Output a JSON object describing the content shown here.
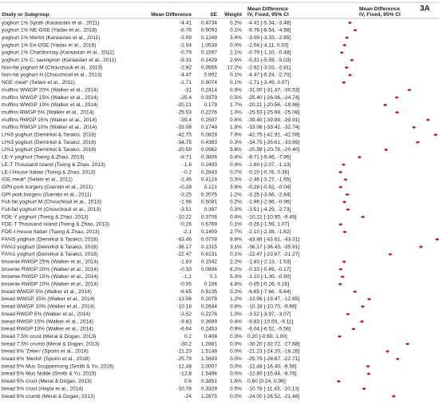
{
  "panel_label": "3A",
  "header": {
    "study": "Study or Subgroup",
    "md": "Mean Difference",
    "se": "SE",
    "weight": "Weight",
    "ci_title": "Mean Difference",
    "ci_sub": "IV, Fixed, 95% CI",
    "plot_title": "Mean Difference",
    "plot_sub": "IV, Fixed, 95% CI"
  },
  "rows": [
    [
      "yoghurt 1% Syrah (Karaaslan et al., 2011)",
      -4.41,
      0.4734,
      "0.2%",
      "-4.41 [-5.34, -3.48]"
    ],
    [
      "yoghurt 1% NE-GSE (Yadav et al., 2018)",
      -6.76,
      0.9093,
      "0.1%",
      "-6.76 [-8.54, -4.98]"
    ],
    [
      "yoghurt 1% Merlot (Karaaslan et al., 2011)",
      -3.09,
      0.1249,
      "3.4%",
      "-3.09 [-3.33, -2.85]"
    ],
    [
      "yoghurt 1% En-OSE (Yadav et al., 2018)",
      -2.04,
      1.0538,
      "0.0%",
      "-2.04 [-4.11, 0.03]"
    ],
    [
      "yoghurt 1% Chardonnay (Karaaslan et al., 2011)",
      -0.79,
      0.1597,
      "2.1%",
      "-0.79 [-1.10, -0.48]"
    ],
    [
      "yoghurt 1% C. sauvignon (Karaaslan et al., 2011)",
      -5.31,
      0.1429,
      "2.6%",
      "-5.31 [-5.59, -5.03]"
    ],
    [
      "Non-fat yoghurt M (Chouchouli et al., 2013)",
      -2.92,
      0.0555,
      "17.2%",
      "-2.92 [-3.03, -2.81]"
    ],
    [
      "Non-fat yoghurt H (Chouchouli et al., 2013)",
      -4.47,
      0.902,
      "0.1%",
      "-4.47 [-6.24, -2.70]"
    ],
    [
      "NGE meat* (Selani et al., 2011)",
      -1.71,
      0.9074,
      "0.1%",
      "-1.71 [-3.49, 0.07]"
    ],
    [
      "muffins WWGP 20% (Walker et al., 2014)",
      -31,
      0.2414,
      "0.9%",
      "-31.00 [-31.47, -30.53]"
    ],
    [
      "muffins WWGP 15% (Walker et al., 2014)",
      -25.4,
      0.3379,
      "0.5%",
      "-25.40 [-26.06, -24.74]"
    ],
    [
      "muffins WWGP 10% (Walker et al., 2014)",
      -20.21,
      0.179,
      "1.7%",
      "-20.21 [-20.56, -19.86]"
    ],
    [
      "muffins RWGP 5% (Walker et al., 2014)",
      -25.53,
      0.2276,
      "1.0%",
      "-25.53 [-25.98, -25.08]"
    ],
    [
      "muffins RWGP 15% (Walker et al., 2014)",
      -39.4,
      0.2507,
      "0.8%",
      "-39.40 [-39.89, -38.91]"
    ],
    [
      "muffins RWGP 10% (Walker et al., 2014)",
      -33.08,
      0.1749,
      "1.8%",
      "-33.08 [-33.42, -32.74]"
    ],
    [
      "LI%5 yoghurt (Demirkol & Tarakci, 2018)",
      -42.75,
      0.0828,
      "7.8%",
      "-42.75 [-42.91, -42.59]"
    ],
    [
      "LI%3 yoghurt (Demirkol & Tarakci, 2018)",
      -34.75,
      0.4383,
      "0.3%",
      "-34.75 [-35.61, -33.89]"
    ],
    [
      "LI%1 yoghurt (Demirkol & Tarakci, 2018)",
      -20.59,
      0.0962,
      "5.8%",
      "-20.59 [-20.78, -20.40]"
    ],
    [
      "LE-Y yoghurt (Tseng & Zhao, 2013)",
      -8.71,
      0.3806,
      "0.4%",
      "-8.71 [-9.46, -7.96]"
    ],
    [
      "LE-T Thousand Island (Tseng & Zhao, 2013)",
      -1.6,
      0.2403,
      "0.9%",
      "-1.60 [-2.07, -1.13]"
    ],
    [
      "LE-I House Italian (Tseng & Zhao, 2013)",
      -0.2,
      0.2843,
      "0.7%",
      "-0.20 [-0.76, 0.36]"
    ],
    [
      "IGE meat* (Selani et al., 2011)",
      -2.46,
      0.4124,
      "0.3%",
      "-2.46 [-3.27, -1.65]"
    ],
    [
      "GPII pork burgers (Garrido et al., 2011)",
      -0.28,
      0.121,
      "3.6%",
      "-0.28 [-0.52, -0.04]"
    ],
    [
      "GPI pork burgers (Garrido et al., 2011)",
      -3.25,
      0.2075,
      "1.2%",
      "-3.25 [-3.66, -2.84]"
    ],
    [
      "Full-fat yoghurt M (Chouchouli et al., 2013)",
      -1.96,
      0.5081,
      "0.2%",
      "-1.96 [-2.96, -0.96]"
    ],
    [
      "Full-fat yoghurt H (Chouchouli et al., 2013)",
      -3.51,
      0.397,
      "0.3%",
      "-3.51 [-4.29, -2.73]"
    ],
    [
      "FDE-Y yoghurt (Tseng & Zhao, 2013)",
      -10.22,
      0.3706,
      "0.4%",
      "-10.22 [-10.95, -9.49]"
    ],
    [
      "FDE-T Thousand Island (Tseng & Zhao, 2013)",
      -0.26,
      0.6769,
      "0.1%",
      "-0.26 [-1.59, 1.07]"
    ],
    [
      "FDE-I House Italian (Tseng & Zhao, 2013)",
      -2.1,
      0.1409,
      "2.7%",
      "-2.10 [-2.38, -1.82]"
    ],
    [
      "FA%5 yoghurt (Demirkol & Tarakci, 2018)",
      -43.46,
      0.0778,
      "8.8%",
      "-43.46 [-43.61, -43.31]"
    ],
    [
      "FA%3 yoghurt (Demirkol & Tarakci, 2018)",
      -36.17,
      0.1315,
      "3.1%",
      "-36.17 [-36.43, -35.91]"
    ],
    [
      "FA%1 yoghurt (Demirkol & Tarakci, 2018)",
      -22.47,
      0.6131,
      "0.1%",
      "-22.47 [-23.67, -21.27]"
    ],
    [
      "brownie RWGP 25% (Walker et al., 2014)",
      -1.83,
      0.1542,
      "2.2%",
      "-1.83 [-2.13, -1.53]"
    ],
    [
      "brownie RWGP 20% (Walker et al., 2014)",
      -0.33,
      0.0806,
      "8.2%",
      "-0.33 [-0.49, -0.17]"
    ],
    [
      "brownie RWGP 15% (Walker et al., 2014)",
      -1.1,
      0.1,
      "5.3%",
      "-1.10 [-1.30, -0.90]"
    ],
    [
      "brownie RWGP 10% (Walker et al., 2014)",
      -0.05,
      0.106,
      "4.8%",
      "-0.05 [-0.26, 0.16]"
    ],
    [
      "bread WWGP 5% (Walker et al., 2014)",
      -6.65,
      0.5135,
      "0.2%",
      "-6.65 [-7.66, -5.64]"
    ],
    [
      "bread WWGP 15% (Walker et al., 2014)",
      -13.06,
      0.2078,
      "1.2%",
      "-13.06 [-13.47, -12.65]"
    ],
    [
      "bread WWGP 10% (Walker et al., 2014)",
      -10.18,
      0.2644,
      "0.8%",
      "-10.18 [-10.70, -9.66]"
    ],
    [
      "bread RWGP 5% (Walker et al., 2014)",
      -3.52,
      0.2276,
      "1.0%",
      "-3.52 [-3.97, -3.07]"
    ],
    [
      "bread RWGP 15% (Walker et al., 2014)",
      -9.83,
      0.3699,
      "0.4%",
      "-9.83 [-10.55, -9.11]"
    ],
    [
      "bread RWGP 10% (Walker et al., 2014)",
      -6.04,
      0.2453,
      "0.9%",
      "-6.04 [-6.52, -5.56]"
    ],
    [
      "bread 7.5% crust (Meral & Dogan, 2013)",
      0.2,
      0.408,
      "0.3%",
      "0.20 [-0.60, 1.00]"
    ],
    [
      "bread 7.5% crumb (Meral & Dogan, 2013)",
      -30.2,
      1.2881,
      "0.0%",
      "-30.20 [-32.72, -27.68]"
    ],
    [
      "bread 6% 'Zelen' (Sporin et al., 2018)",
      -21.23,
      1.5148,
      "0.0%",
      "-21.23 [-24.20, -18.26]"
    ],
    [
      "bread 6% 'Merlot' (Sporin et al., 2018)",
      -25.79,
      1.5693,
      "0.0%",
      "-25.79 [-28.87, -22.71]"
    ],
    [
      "bread 5% Mus Scuppernong (Smith & Yu, 2015)",
      -12.48,
      2.0007,
      "0.0%",
      "-12.48 [-16.40, -8.56]"
    ],
    [
      "bread 5% Mus Noble (Smith & Yu, 2015)",
      -12.8,
      1.5496,
      "0.0%",
      "-12.80 [-15.84, -9.76]"
    ],
    [
      "bread 5% crust (Meral & Dogan, 2013)",
      0.6,
      0.1851,
      "1.6%",
      "0.60 [0.24, 0.96]"
    ],
    [
      "bread 5% crust (Hayta et al., 2014)",
      -10.78,
      0.3329,
      "0.5%",
      "-10.78 [-11.43, -10.13]"
    ],
    [
      "bread 5% crumb (Meral & Dogan, 2013)",
      -24,
      1.2875,
      "0.0%",
      "-24.00 [-26.52, -21.48]"
    ]
  ]
}
